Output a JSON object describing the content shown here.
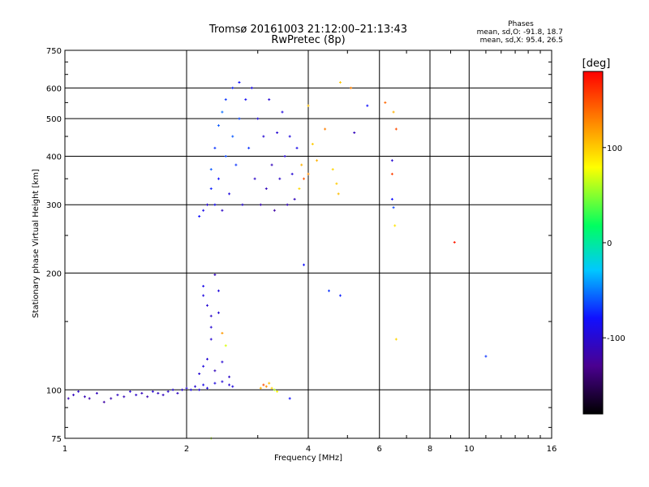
{
  "chart_data": {
    "type": "scatter",
    "title": "Tromsø 20161003 21:12:00–21:13:43",
    "subtitle": "RwPretec (8p)",
    "xlabel": "Frequency [MHz]",
    "ylabel": "Stationary phase Virtual Height [km]",
    "x_scale": "log",
    "y_scale": "log",
    "xlim": [
      1,
      16
    ],
    "ylim": [
      75,
      750
    ],
    "x_ticks": [
      1,
      2,
      4,
      6,
      8,
      10,
      16
    ],
    "y_ticks": [
      75,
      100,
      200,
      300,
      400,
      500,
      600,
      750
    ],
    "grid": true,
    "colorbar": {
      "label": "[deg]",
      "range": [
        -180,
        180
      ],
      "ticks": [
        100,
        0,
        -100
      ],
      "colors": [
        "#000000",
        "#4a0090",
        "#1010ff",
        "#00c8ff",
        "#00ff60",
        "#ffff00",
        "#ff8000",
        "#ff0000"
      ]
    },
    "stats": {
      "heading": "Phases",
      "line_o": "mean, sd,O: -91.8, 18.7",
      "line_x": "mean, sd,X: 95.4, 26.5"
    },
    "points": [
      {
        "x": 1.02,
        "y": 95,
        "phase": -115
      },
      {
        "x": 1.05,
        "y": 97,
        "phase": -110
      },
      {
        "x": 1.08,
        "y": 99,
        "phase": -105
      },
      {
        "x": 1.12,
        "y": 96,
        "phase": -112
      },
      {
        "x": 1.15,
        "y": 95,
        "phase": -118
      },
      {
        "x": 1.2,
        "y": 98,
        "phase": -110
      },
      {
        "x": 1.25,
        "y": 93,
        "phase": -120
      },
      {
        "x": 1.3,
        "y": 95,
        "phase": -115
      },
      {
        "x": 1.35,
        "y": 97,
        "phase": -108
      },
      {
        "x": 1.4,
        "y": 96,
        "phase": -112
      },
      {
        "x": 1.45,
        "y": 99,
        "phase": -100
      },
      {
        "x": 1.5,
        "y": 97,
        "phase": -105
      },
      {
        "x": 1.55,
        "y": 98,
        "phase": -110
      },
      {
        "x": 1.6,
        "y": 96,
        "phase": -115
      },
      {
        "x": 1.65,
        "y": 99,
        "phase": -102
      },
      {
        "x": 1.7,
        "y": 98,
        "phase": -108
      },
      {
        "x": 1.75,
        "y": 97,
        "phase": -110
      },
      {
        "x": 1.8,
        "y": 99,
        "phase": -104
      },
      {
        "x": 1.85,
        "y": 100,
        "phase": -100
      },
      {
        "x": 1.9,
        "y": 98,
        "phase": -108
      },
      {
        "x": 1.95,
        "y": 100,
        "phase": -105
      },
      {
        "x": 2.0,
        "y": 101,
        "phase": -100
      },
      {
        "x": 2.05,
        "y": 100,
        "phase": -95
      },
      {
        "x": 2.1,
        "y": 102,
        "phase": -100
      },
      {
        "x": 2.15,
        "y": 100,
        "phase": -98
      },
      {
        "x": 2.2,
        "y": 103,
        "phase": -92
      },
      {
        "x": 2.25,
        "y": 101,
        "phase": -96
      },
      {
        "x": 2.35,
        "y": 104,
        "phase": -95
      },
      {
        "x": 2.45,
        "y": 105,
        "phase": -98
      },
      {
        "x": 2.55,
        "y": 103,
        "phase": -100
      },
      {
        "x": 2.6,
        "y": 102,
        "phase": -95
      },
      {
        "x": 2.15,
        "y": 110,
        "phase": -100
      },
      {
        "x": 2.2,
        "y": 115,
        "phase": -95
      },
      {
        "x": 2.25,
        "y": 120,
        "phase": -100
      },
      {
        "x": 2.35,
        "y": 112,
        "phase": -110
      },
      {
        "x": 2.45,
        "y": 118,
        "phase": -100
      },
      {
        "x": 2.55,
        "y": 108,
        "phase": -105
      },
      {
        "x": 2.2,
        "y": 185,
        "phase": -90
      },
      {
        "x": 2.2,
        "y": 175,
        "phase": -95
      },
      {
        "x": 2.25,
        "y": 165,
        "phase": -100
      },
      {
        "x": 2.3,
        "y": 155,
        "phase": -105
      },
      {
        "x": 2.3,
        "y": 145,
        "phase": -100
      },
      {
        "x": 2.35,
        "y": 198,
        "phase": -110
      },
      {
        "x": 2.4,
        "y": 180,
        "phase": -95
      },
      {
        "x": 2.4,
        "y": 158,
        "phase": -100
      },
      {
        "x": 2.45,
        "y": 140,
        "phase": 120
      },
      {
        "x": 2.5,
        "y": 130,
        "phase": 70
      },
      {
        "x": 2.3,
        "y": 135,
        "phase": -100
      },
      {
        "x": 3.05,
        "y": 101,
        "phase": 110
      },
      {
        "x": 3.1,
        "y": 103,
        "phase": 150
      },
      {
        "x": 3.15,
        "y": 102,
        "phase": 125
      },
      {
        "x": 3.2,
        "y": 104,
        "phase": 105
      },
      {
        "x": 3.25,
        "y": 101,
        "phase": 95
      },
      {
        "x": 3.3,
        "y": 100,
        "phase": 60
      },
      {
        "x": 3.35,
        "y": 99,
        "phase": 80
      },
      {
        "x": 3.6,
        "y": 95,
        "phase": -80
      },
      {
        "x": 2.15,
        "y": 280,
        "phase": -80
      },
      {
        "x": 2.2,
        "y": 290,
        "phase": -90
      },
      {
        "x": 2.25,
        "y": 300,
        "phase": -100
      },
      {
        "x": 2.3,
        "y": 330,
        "phase": -75
      },
      {
        "x": 2.3,
        "y": 370,
        "phase": -60
      },
      {
        "x": 2.35,
        "y": 420,
        "phase": -70
      },
      {
        "x": 2.35,
        "y": 300,
        "phase": -85
      },
      {
        "x": 2.4,
        "y": 480,
        "phase": -60
      },
      {
        "x": 2.4,
        "y": 350,
        "phase": -80
      },
      {
        "x": 2.45,
        "y": 520,
        "phase": -55
      },
      {
        "x": 2.45,
        "y": 290,
        "phase": -105
      },
      {
        "x": 2.5,
        "y": 560,
        "phase": -70
      },
      {
        "x": 2.5,
        "y": 400,
        "phase": -65
      },
      {
        "x": 2.55,
        "y": 320,
        "phase": -95
      },
      {
        "x": 2.6,
        "y": 600,
        "phase": -75
      },
      {
        "x": 2.6,
        "y": 450,
        "phase": -60
      },
      {
        "x": 2.65,
        "y": 380,
        "phase": -70
      },
      {
        "x": 2.7,
        "y": 620,
        "phase": -80
      },
      {
        "x": 2.7,
        "y": 500,
        "phase": -65
      },
      {
        "x": 2.75,
        "y": 300,
        "phase": -100
      },
      {
        "x": 2.8,
        "y": 560,
        "phase": -85
      },
      {
        "x": 2.85,
        "y": 420,
        "phase": -70
      },
      {
        "x": 2.9,
        "y": 600,
        "phase": -90
      },
      {
        "x": 2.95,
        "y": 350,
        "phase": -105
      },
      {
        "x": 3.0,
        "y": 500,
        "phase": -95
      },
      {
        "x": 3.05,
        "y": 300,
        "phase": -115
      },
      {
        "x": 3.1,
        "y": 450,
        "phase": -100
      },
      {
        "x": 3.15,
        "y": 330,
        "phase": -110
      },
      {
        "x": 3.2,
        "y": 560,
        "phase": -100
      },
      {
        "x": 3.25,
        "y": 380,
        "phase": -110
      },
      {
        "x": 3.3,
        "y": 290,
        "phase": -120
      },
      {
        "x": 3.35,
        "y": 460,
        "phase": -100
      },
      {
        "x": 3.4,
        "y": 350,
        "phase": -105
      },
      {
        "x": 3.45,
        "y": 520,
        "phase": -95
      },
      {
        "x": 3.5,
        "y": 400,
        "phase": -100
      },
      {
        "x": 3.55,
        "y": 300,
        "phase": -110
      },
      {
        "x": 3.6,
        "y": 450,
        "phase": -95
      },
      {
        "x": 3.65,
        "y": 360,
        "phase": -100
      },
      {
        "x": 3.7,
        "y": 310,
        "phase": -110
      },
      {
        "x": 3.75,
        "y": 420,
        "phase": -90
      },
      {
        "x": 3.8,
        "y": 330,
        "phase": 95
      },
      {
        "x": 3.85,
        "y": 380,
        "phase": 110
      },
      {
        "x": 3.9,
        "y": 350,
        "phase": 145
      },
      {
        "x": 4.0,
        "y": 360,
        "phase": 125
      },
      {
        "x": 4.0,
        "y": 540,
        "phase": 105
      },
      {
        "x": 4.1,
        "y": 430,
        "phase": 100
      },
      {
        "x": 4.2,
        "y": 390,
        "phase": 110
      },
      {
        "x": 4.4,
        "y": 470,
        "phase": 130
      },
      {
        "x": 4.6,
        "y": 370,
        "phase": 95
      },
      {
        "x": 4.7,
        "y": 340,
        "phase": 100
      },
      {
        "x": 4.75,
        "y": 320,
        "phase": 105
      },
      {
        "x": 4.8,
        "y": 620,
        "phase": 100
      },
      {
        "x": 5.1,
        "y": 600,
        "phase": 130
      },
      {
        "x": 5.2,
        "y": 460,
        "phase": -110
      },
      {
        "x": 5.6,
        "y": 540,
        "phase": -80
      },
      {
        "x": 4.5,
        "y": 180,
        "phase": -70
      },
      {
        "x": 4.8,
        "y": 175,
        "phase": -75
      },
      {
        "x": 3.9,
        "y": 210,
        "phase": -80
      },
      {
        "x": 6.2,
        "y": 550,
        "phase": 140
      },
      {
        "x": 6.5,
        "y": 520,
        "phase": 110
      },
      {
        "x": 6.6,
        "y": 470,
        "phase": 150
      },
      {
        "x": 6.45,
        "y": 390,
        "phase": -100
      },
      {
        "x": 6.45,
        "y": 360,
        "phase": 155
      },
      {
        "x": 6.45,
        "y": 310,
        "phase": -80
      },
      {
        "x": 6.5,
        "y": 295,
        "phase": -65
      },
      {
        "x": 6.55,
        "y": 265,
        "phase": 90
      },
      {
        "x": 6.6,
        "y": 135,
        "phase": 95
      },
      {
        "x": 9.2,
        "y": 240,
        "phase": 170
      },
      {
        "x": 11.0,
        "y": 122,
        "phase": -70
      },
      {
        "x": 2.3,
        "y": 75,
        "phase": 60
      }
    ]
  }
}
